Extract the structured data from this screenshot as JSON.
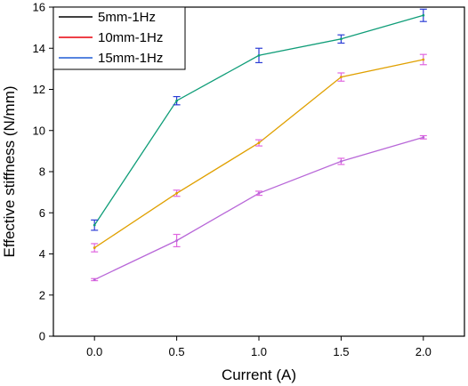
{
  "chart_data": {
    "type": "line",
    "title": "",
    "xlabel": "Current (A)",
    "ylabel": "Effective stiffness (N/mm)",
    "x": [
      0.0,
      0.5,
      1.0,
      1.5,
      2.0
    ],
    "x_tick_labels": [
      "0.0",
      "0.5",
      "1.0",
      "1.5",
      "2.0"
    ],
    "xlim": [
      -0.25,
      2.25
    ],
    "ylim": [
      0,
      16
    ],
    "y_ticks": [
      0,
      2,
      4,
      6,
      8,
      10,
      12,
      14,
      16
    ],
    "y_tick_labels": [
      "0",
      "2",
      "4",
      "6",
      "8",
      "10",
      "12",
      "14",
      "16"
    ],
    "grid": false,
    "legend_placement": "top-left",
    "legend_entries": [
      {
        "label": "5mm-1Hz",
        "color": "#000000"
      },
      {
        "label": "10mm-1Hz",
        "color": "#e8000b"
      },
      {
        "label": "15mm-1Hz",
        "color": "#1f5bd6"
      }
    ],
    "series": [
      {
        "line_color": "#b867d8",
        "errbar_color": "#e066e0",
        "values": [
          2.75,
          4.65,
          6.95,
          8.5,
          9.67
        ],
        "errors": [
          0.05,
          0.3,
          0.1,
          0.15,
          0.08
        ]
      },
      {
        "line_color": "#e0a000",
        "errbar_color": "#e066e0",
        "values": [
          4.3,
          6.95,
          9.4,
          12.6,
          13.45
        ],
        "errors": [
          0.2,
          0.15,
          0.15,
          0.2,
          0.25
        ]
      },
      {
        "line_color": "#0f9d78",
        "errbar_color": "#2b3dd6",
        "values": [
          5.4,
          11.45,
          13.65,
          14.45,
          15.6
        ],
        "errors": [
          0.25,
          0.2,
          0.35,
          0.2,
          0.3
        ]
      }
    ]
  }
}
